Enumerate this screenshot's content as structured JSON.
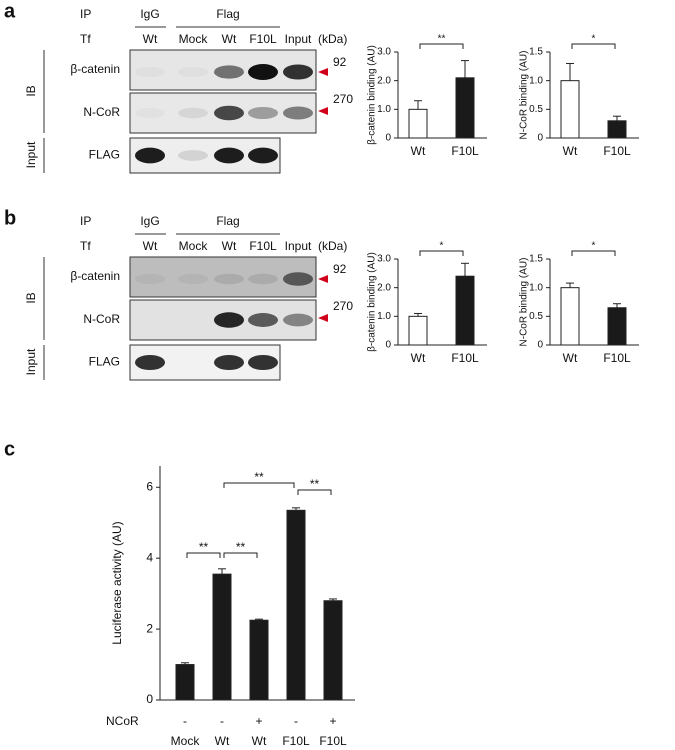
{
  "panels": [
    {
      "letter": "a",
      "ip_label": "IP",
      "tf_label": "Tf",
      "ip_groups": [
        "IgG",
        "Flag"
      ],
      "lanes": [
        "Wt",
        "Mock",
        "Wt",
        "F10L",
        "Input"
      ],
      "kda_label": "(kDa)",
      "ib_label": "IB",
      "input_label": "Input",
      "rows": [
        "β-catenin",
        "N-CoR",
        "FLAG"
      ],
      "markers": [
        "92",
        "270"
      ]
    },
    {
      "letter": "b",
      "ip_label": "IP",
      "tf_label": "Tf",
      "ip_groups": [
        "IgG",
        "Flag"
      ],
      "lanes": [
        "Wt",
        "Mock",
        "Wt",
        "F10L",
        "Input"
      ],
      "kda_label": "(kDa)",
      "ib_label": "IB",
      "input_label": "Input",
      "rows": [
        "β-catenin",
        "N-CoR",
        "FLAG"
      ],
      "markers": [
        "92",
        "270"
      ]
    }
  ],
  "panel_c_letter": "c",
  "chart_data": [
    {
      "type": "bar",
      "y_label": "β-catenin binding (AU)",
      "categories": [
        "Wt",
        "F10L"
      ],
      "values": [
        1.0,
        2.1
      ],
      "errors": [
        0.3,
        0.6
      ],
      "colors": [
        "#ffffff",
        "#1a1a1a"
      ],
      "ylim": [
        0,
        3
      ],
      "yticks": [
        0,
        {
          "value": 1,
          "label": "1.0"
        },
        {
          "value": 2,
          "label": "2.0"
        },
        {
          "value": 3,
          "label": "3.0"
        }
      ],
      "brackets": [
        {
          "between": [
            0,
            1
          ],
          "label": "**"
        }
      ]
    },
    {
      "type": "bar",
      "y_label": "N-CoR binding (AU)",
      "categories": [
        "Wt",
        "F10L"
      ],
      "values": [
        1.0,
        0.3
      ],
      "errors": [
        0.3,
        0.08
      ],
      "colors": [
        "#ffffff",
        "#1a1a1a"
      ],
      "ylim": [
        0,
        1.5
      ],
      "yticks": [
        0,
        0.5,
        {
          "value": 1,
          "label": "1.0"
        },
        1.5
      ],
      "brackets": [
        {
          "between": [
            0,
            1
          ],
          "label": "*"
        }
      ]
    },
    {
      "type": "bar",
      "y_label": "β-catenin binding (AU)",
      "categories": [
        "Wt",
        "F10L"
      ],
      "values": [
        1.0,
        2.4
      ],
      "errors": [
        0.1,
        0.45
      ],
      "colors": [
        "#ffffff",
        "#1a1a1a"
      ],
      "ylim": [
        0,
        3
      ],
      "yticks": [
        0,
        {
          "value": 1,
          "label": "1.0"
        },
        {
          "value": 2,
          "label": "2.0"
        },
        {
          "value": 3,
          "label": "3.0"
        }
      ],
      "brackets": [
        {
          "between": [
            0,
            1
          ],
          "label": "*"
        }
      ]
    },
    {
      "type": "bar",
      "y_label": "N-CoR binding (AU)",
      "categories": [
        "Wt",
        "F10L"
      ],
      "values": [
        1.0,
        0.65
      ],
      "errors": [
        0.08,
        0.07
      ],
      "colors": [
        "#ffffff",
        "#1a1a1a"
      ],
      "ylim": [
        0,
        1.5
      ],
      "yticks": [
        0,
        0.5,
        {
          "value": 1,
          "label": "1.0"
        },
        1.5
      ],
      "brackets": [
        {
          "between": [
            0,
            1
          ],
          "label": "*"
        }
      ]
    },
    {
      "type": "bar",
      "y_label": "Luciferase activity (AU)",
      "categories": [
        "Mock",
        "Wt",
        "Wt",
        "F10L",
        "F10L"
      ],
      "row_label": "NCoR",
      "row_values": [
        "-",
        "-",
        "+",
        "-",
        "+"
      ],
      "values": [
        1.0,
        3.55,
        2.25,
        5.35,
        2.8
      ],
      "errors": [
        0.05,
        0.15,
        0.03,
        0.07,
        0.05
      ],
      "color": "#1a1a1a",
      "ylim": [
        0,
        6.6
      ],
      "yticks": [
        0,
        2,
        4,
        6
      ],
      "brackets": [
        {
          "between": [
            0,
            1
          ],
          "label": "**"
        },
        {
          "between": [
            1,
            2
          ],
          "label": "**"
        },
        {
          "between": [
            1,
            3
          ],
          "label": "**"
        },
        {
          "between": [
            3,
            4
          ],
          "label": "**"
        }
      ]
    }
  ]
}
